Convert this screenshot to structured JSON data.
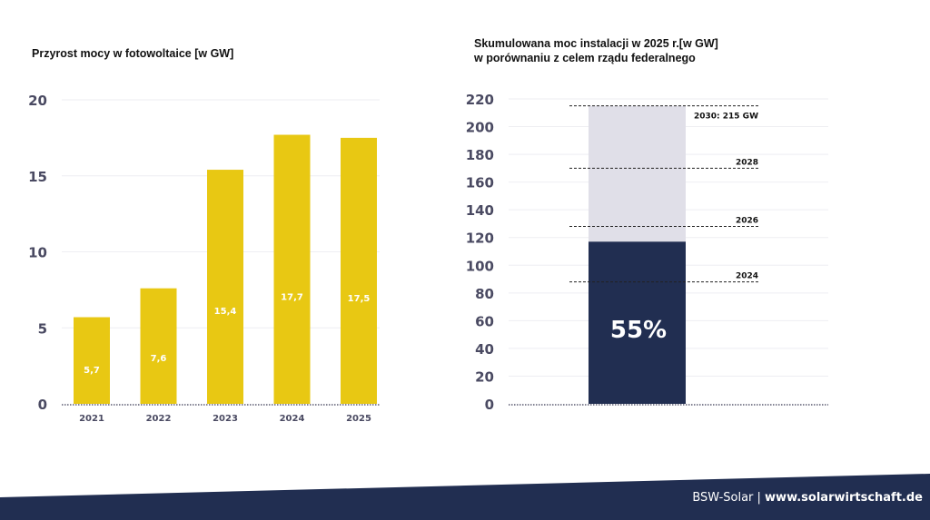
{
  "chart_data": [
    {
      "type": "bar",
      "title": "Przyrost mocy w fotowoltaice [w GW]",
      "categories": [
        "2021",
        "2022",
        "2023",
        "2024",
        "2025"
      ],
      "values": [
        5.7,
        7.6,
        15.4,
        17.7,
        17.5
      ],
      "data_labels": [
        "5,7",
        "7,6",
        "15,4",
        "17,7",
        "17,5"
      ],
      "yticks": [
        "0",
        "5",
        "10",
        "15",
        "20"
      ],
      "ylim": [
        0,
        20
      ],
      "grid": true,
      "color": "#e8c813"
    },
    {
      "type": "bar",
      "title_lines": [
        "Skumulowana moc instalacji w 2025 r.[w GW]",
        "w porównaniu z celem rządu federalnego"
      ],
      "stacked": true,
      "achieved": 117,
      "target": 215,
      "achieved_label": "55%",
      "yticks": [
        "0",
        "20",
        "40",
        "60",
        "80",
        "100",
        "120",
        "140",
        "160",
        "180",
        "200",
        "220"
      ],
      "ylim": [
        0,
        220
      ],
      "grid": true,
      "colors": {
        "achieved": "#212e51",
        "target": "#e0dfe8"
      },
      "markers": [
        {
          "label": "2024",
          "value": 88
        },
        {
          "label": "2026",
          "value": 128
        },
        {
          "label": "2028",
          "value": 170
        },
        {
          "label": "2030: 215 GW",
          "value": 215
        }
      ]
    }
  ],
  "footer": {
    "brand": "BSW-Solar | ",
    "url": "www.solarwirtschaft.de",
    "color": "#212e51"
  }
}
